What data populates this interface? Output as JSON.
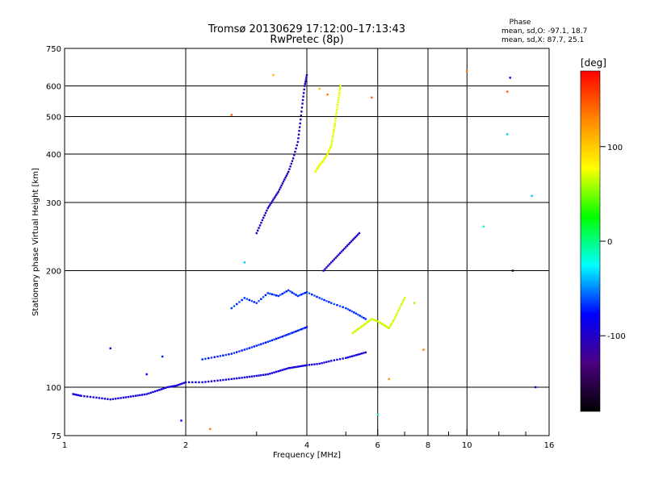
{
  "chart_data": {
    "type": "scatter",
    "title": "Tromsø 20130629 17:12:00–17:13:43",
    "subtitle": "RwPretec (8p)",
    "xlabel": "Frequency [MHz]",
    "ylabel": "Stationary phase Virtual Height [km]",
    "xscale": "log",
    "yscale": "log",
    "xlim": [
      1,
      16
    ],
    "ylim": [
      75,
      750
    ],
    "xticks": [
      1,
      2,
      4,
      6,
      8,
      10,
      16
    ],
    "xtick_labels": [
      "1",
      "2",
      "4",
      "6",
      "8",
      "10",
      "16"
    ],
    "xgrid": [
      2,
      4,
      6,
      8,
      10
    ],
    "yticks": [
      75,
      100,
      200,
      300,
      400,
      500,
      600,
      750
    ],
    "ytick_labels": [
      "75",
      "100",
      "200",
      "300",
      "400",
      "500",
      "600",
      "750"
    ],
    "ygrid": [
      100,
      200,
      300,
      400,
      500,
      600
    ],
    "grid": true,
    "phase_stats": {
      "title": "Phase",
      "o_label": "mean, sd,O: -97.1, 18.7",
      "x_label": "mean, sd,X:  87.7, 25.1"
    },
    "colorbar": {
      "label": "[deg]",
      "range": [
        -180,
        180
      ],
      "ticks": [
        100,
        0,
        -100
      ],
      "tick_labels": [
        "100",
        "0",
        "-100"
      ],
      "colors": [
        "#ff0000",
        "#ff8800",
        "#ffff00",
        "#00ff00",
        "#00ffff",
        "#0000ff",
        "#4b0082",
        "#000000"
      ]
    },
    "traces": [
      {
        "name": "",
        "phase": -110,
        "points": [
          [
            1.05,
            96
          ],
          [
            1.1,
            95
          ],
          [
            1.2,
            94
          ],
          [
            1.3,
            93
          ],
          [
            1.4,
            94
          ],
          [
            1.5,
            95
          ],
          [
            1.6,
            96
          ],
          [
            1.7,
            98
          ],
          [
            1.8,
            100
          ],
          [
            1.9,
            101
          ],
          [
            2.0,
            103
          ],
          [
            2.2,
            103
          ],
          [
            2.4,
            104
          ],
          [
            2.6,
            105
          ],
          [
            2.8,
            106
          ],
          [
            3.0,
            107
          ],
          [
            3.2,
            108
          ],
          [
            3.4,
            110
          ],
          [
            3.6,
            112
          ],
          [
            3.8,
            113
          ],
          [
            4.0,
            114
          ],
          [
            4.3,
            115
          ],
          [
            4.6,
            117
          ],
          [
            5.0,
            119
          ],
          [
            5.3,
            121
          ],
          [
            5.6,
            123
          ]
        ]
      },
      {
        "name": "",
        "phase": -95,
        "points": [
          [
            2.2,
            118
          ],
          [
            2.4,
            120
          ],
          [
            2.6,
            122
          ],
          [
            2.8,
            125
          ],
          [
            3.0,
            128
          ],
          [
            3.2,
            131
          ],
          [
            3.4,
            134
          ],
          [
            3.6,
            137
          ],
          [
            3.8,
            140
          ],
          [
            4.0,
            143
          ]
        ]
      },
      {
        "name": "",
        "phase": -120,
        "points": [
          [
            3.0,
            250
          ],
          [
            3.1,
            270
          ],
          [
            3.2,
            290
          ],
          [
            3.3,
            305
          ],
          [
            3.4,
            320
          ],
          [
            3.5,
            340
          ],
          [
            3.6,
            360
          ],
          [
            3.7,
            390
          ],
          [
            3.8,
            430
          ],
          [
            3.85,
            480
          ],
          [
            3.9,
            540
          ],
          [
            3.95,
            600
          ],
          [
            4.0,
            640
          ]
        ]
      },
      {
        "name": "",
        "phase": 90,
        "points": [
          [
            4.2,
            360
          ],
          [
            4.3,
            375
          ],
          [
            4.4,
            385
          ],
          [
            4.5,
            400
          ],
          [
            4.6,
            420
          ],
          [
            4.65,
            450
          ],
          [
            4.7,
            480
          ],
          [
            4.75,
            520
          ],
          [
            4.8,
            560
          ],
          [
            4.85,
            600
          ]
        ]
      },
      {
        "name": "",
        "phase": -90,
        "points": [
          [
            2.6,
            160
          ],
          [
            2.8,
            170
          ],
          [
            3.0,
            165
          ],
          [
            3.2,
            175
          ],
          [
            3.4,
            172
          ],
          [
            3.6,
            178
          ],
          [
            3.8,
            172
          ],
          [
            4.0,
            176
          ],
          [
            4.3,
            170
          ],
          [
            4.6,
            165
          ],
          [
            5.0,
            160
          ],
          [
            5.3,
            155
          ],
          [
            5.6,
            150
          ]
        ]
      },
      {
        "name": "",
        "phase": 80,
        "points": [
          [
            5.2,
            138
          ],
          [
            5.4,
            142
          ],
          [
            5.6,
            146
          ],
          [
            5.8,
            150
          ],
          [
            6.0,
            148
          ],
          [
            6.2,
            145
          ],
          [
            6.4,
            142
          ],
          [
            6.6,
            150
          ],
          [
            6.8,
            160
          ],
          [
            7.0,
            170
          ]
        ]
      },
      {
        "name": "",
        "phase": -115,
        "points": [
          [
            4.4,
            200
          ],
          [
            4.6,
            210
          ],
          [
            4.8,
            220
          ],
          [
            5.0,
            230
          ],
          [
            5.2,
            240
          ],
          [
            5.4,
            250
          ]
        ]
      }
    ],
    "scatter_points": [
      {
        "x": 1.3,
        "y": 126,
        "phase": -110
      },
      {
        "x": 1.6,
        "y": 108,
        "phase": -100
      },
      {
        "x": 1.75,
        "y": 120,
        "phase": -95
      },
      {
        "x": 1.95,
        "y": 82,
        "phase": -105
      },
      {
        "x": 2.3,
        "y": 78,
        "phase": 140
      },
      {
        "x": 2.6,
        "y": 505,
        "phase": 150
      },
      {
        "x": 2.8,
        "y": 210,
        "phase": -60
      },
      {
        "x": 3.3,
        "y": 640,
        "phase": 120
      },
      {
        "x": 4.3,
        "y": 590,
        "phase": 120
      },
      {
        "x": 4.5,
        "y": 570,
        "phase": 140
      },
      {
        "x": 5.8,
        "y": 560,
        "phase": 150
      },
      {
        "x": 6.0,
        "y": 85,
        "phase": -40
      },
      {
        "x": 6.4,
        "y": 105,
        "phase": 130
      },
      {
        "x": 7.4,
        "y": 165,
        "phase": 60
      },
      {
        "x": 7.8,
        "y": 125,
        "phase": 140
      },
      {
        "x": 10.0,
        "y": 655,
        "phase": 140
      },
      {
        "x": 11.0,
        "y": 260,
        "phase": -40
      },
      {
        "x": 12.6,
        "y": 580,
        "phase": 150
      },
      {
        "x": 12.8,
        "y": 630,
        "phase": -110
      },
      {
        "x": 12.6,
        "y": 450,
        "phase": -60
      },
      {
        "x": 13.0,
        "y": 200,
        "phase": -170
      },
      {
        "x": 14.5,
        "y": 312,
        "phase": -60
      },
      {
        "x": 14.8,
        "y": 100,
        "phase": -110
      }
    ]
  }
}
